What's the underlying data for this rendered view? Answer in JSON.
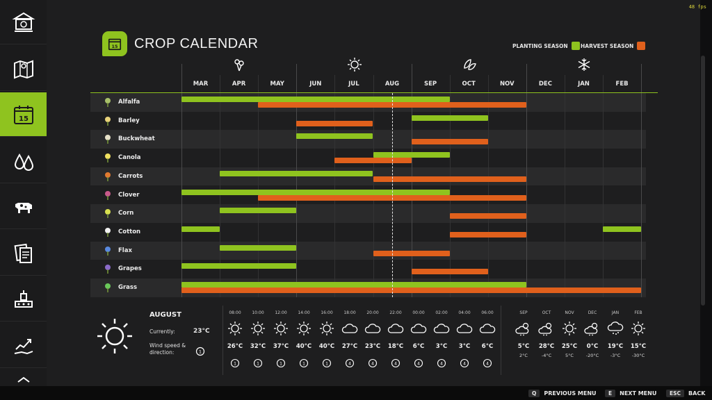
{
  "fps": "48 fps",
  "title": "CROP CALENDAR",
  "calendar_icon_text": "15",
  "legend": {
    "planting": "PLANTING SEASON",
    "harvest": "HARVEST SEASON",
    "planting_color": "#8fc31f",
    "harvest_color": "#e0601c"
  },
  "sidebar": {
    "items": [
      {
        "name": "bank-icon"
      },
      {
        "name": "map-icon"
      },
      {
        "name": "calendar-icon",
        "active": true,
        "text": "15"
      },
      {
        "name": "water-drops-icon"
      },
      {
        "name": "cow-icon"
      },
      {
        "name": "contracts-icon"
      },
      {
        "name": "production-icon"
      },
      {
        "name": "finance-chart-icon"
      }
    ]
  },
  "months": [
    "MAR",
    "APR",
    "MAY",
    "JUN",
    "JUL",
    "AUG",
    "SEP",
    "OCT",
    "NOV",
    "DEC",
    "JAN",
    "FEB"
  ],
  "seasons": [
    "spring-flower-icon",
    "summer-sun-icon",
    "autumn-leaves-icon",
    "winter-snowflake-icon"
  ],
  "current_month": "AUG",
  "crops": [
    {
      "name": "Alfalfa",
      "icon": "alfalfa-icon",
      "planting": [
        [
          0,
          7
        ]
      ],
      "harvest": [
        [
          2,
          9
        ]
      ]
    },
    {
      "name": "Barley",
      "icon": "barley-icon",
      "planting": [
        [
          6,
          8
        ]
      ],
      "harvest": [
        [
          3,
          5
        ]
      ]
    },
    {
      "name": "Buckwheat",
      "icon": "buckwheat-icon",
      "planting": [
        [
          3,
          5
        ]
      ],
      "harvest": [
        [
          6,
          8
        ]
      ]
    },
    {
      "name": "Canola",
      "icon": "canola-icon",
      "planting": [
        [
          5,
          7
        ]
      ],
      "harvest": [
        [
          4,
          6
        ]
      ]
    },
    {
      "name": "Carrots",
      "icon": "carrot-icon",
      "planting": [
        [
          1,
          5
        ]
      ],
      "harvest": [
        [
          5,
          9
        ]
      ]
    },
    {
      "name": "Clover",
      "icon": "clover-icon",
      "planting": [
        [
          0,
          7
        ]
      ],
      "harvest": [
        [
          2,
          9
        ]
      ]
    },
    {
      "name": "Corn",
      "icon": "corn-icon",
      "planting": [
        [
          1,
          3
        ]
      ],
      "harvest": [
        [
          7,
          9
        ]
      ]
    },
    {
      "name": "Cotton",
      "icon": "cotton-icon",
      "planting": [
        [
          0,
          1
        ],
        [
          11,
          12
        ]
      ],
      "harvest": [
        [
          7,
          9
        ]
      ]
    },
    {
      "name": "Flax",
      "icon": "flax-icon",
      "planting": [
        [
          1,
          3
        ]
      ],
      "harvest": [
        [
          5,
          7
        ]
      ]
    },
    {
      "name": "Grapes",
      "icon": "grapes-icon",
      "planting": [
        [
          0,
          3
        ]
      ],
      "harvest": [
        [
          6,
          8
        ]
      ]
    },
    {
      "name": "Grass",
      "icon": "grass-icon",
      "planting": [
        [
          0,
          9
        ]
      ],
      "harvest": [
        [
          0,
          12
        ]
      ]
    }
  ],
  "weather": {
    "month": "AUGUST",
    "currently_label": "Currently:",
    "currently_value": "23°C",
    "wind_label": "Wind speed & direction:",
    "wind_value": "1",
    "hourly": [
      {
        "time": "08:00",
        "icon": "sun",
        "temp": "26°C",
        "wind": "1"
      },
      {
        "time": "10:00",
        "icon": "sun",
        "temp": "32°C",
        "wind": "1"
      },
      {
        "time": "12:00",
        "icon": "sun",
        "temp": "37°C",
        "wind": "1"
      },
      {
        "time": "14:00",
        "icon": "sun",
        "temp": "40°C",
        "wind": "1"
      },
      {
        "time": "16:00",
        "icon": "sun",
        "temp": "40°C",
        "wind": "1"
      },
      {
        "time": "18:00",
        "icon": "cloud",
        "temp": "27°C",
        "wind": "4"
      },
      {
        "time": "20:00",
        "icon": "cloud",
        "temp": "23°C",
        "wind": "4"
      },
      {
        "time": "22:00",
        "icon": "cloud",
        "temp": "18°C",
        "wind": "4"
      },
      {
        "time": "00:00",
        "icon": "cloud",
        "temp": "6°C",
        "wind": "4"
      },
      {
        "time": "02:00",
        "icon": "cloud",
        "temp": "3°C",
        "wind": "4"
      },
      {
        "time": "04:00",
        "icon": "cloud",
        "temp": "3°C",
        "wind": "4"
      },
      {
        "time": "06:00",
        "icon": "cloud",
        "temp": "6°C",
        "wind": "4"
      }
    ],
    "monthly": [
      {
        "month": "SEP",
        "icon": "cloud-sun",
        "high": "5°C",
        "low": "2°C"
      },
      {
        "month": "OCT",
        "icon": "cloud-sun",
        "high": "28°C",
        "low": "-4°C"
      },
      {
        "month": "NOV",
        "icon": "sun",
        "high": "25°C",
        "low": "5°C"
      },
      {
        "month": "DEC",
        "icon": "cloud-sun",
        "high": "0°C",
        "low": "-20°C"
      },
      {
        "month": "JAN",
        "icon": "cloud-snow",
        "high": "19°C",
        "low": "-3°C"
      },
      {
        "month": "FEB",
        "icon": "sun",
        "high": "15°C",
        "low": "-30°C"
      }
    ]
  },
  "footer": {
    "prev_key": "Q",
    "prev_label": "PREVIOUS MENU",
    "next_key": "E",
    "next_label": "NEXT MENU",
    "back_key": "ESC",
    "back_label": "BACK"
  }
}
